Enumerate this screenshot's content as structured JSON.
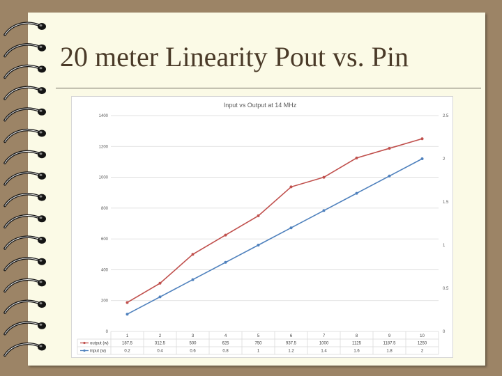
{
  "slide": {
    "title": "20 meter Linearity Pout vs. Pin"
  },
  "colors": {
    "output": "#c0504d",
    "input": "#4f81bd",
    "paper": "#fbfae6",
    "background": "#9c8466"
  },
  "chart_data": {
    "type": "line",
    "title": "Input vs Output at 14 MHz",
    "categories": [
      "1",
      "2",
      "3",
      "4",
      "5",
      "6",
      "7",
      "8",
      "9",
      "10"
    ],
    "series": [
      {
        "name": "output (w)",
        "axis": "left",
        "color": "#c0504d",
        "values": [
          187.5,
          312.5,
          500,
          625,
          750,
          937.5,
          1000,
          1125,
          1187.5,
          1250
        ]
      },
      {
        "name": "input (w)",
        "axis": "right",
        "color": "#4f81bd",
        "values": [
          0.2,
          0.4,
          0.6,
          0.8,
          1,
          1.2,
          1.4,
          1.6,
          1.8,
          2
        ]
      }
    ],
    "y_left": {
      "min": 0,
      "max": 1400,
      "ticks": [
        "0",
        "200",
        "400",
        "600",
        "800",
        "1000",
        "1200",
        "1400"
      ]
    },
    "y_right": {
      "min": 0,
      "max": 2.5,
      "ticks": [
        "0",
        "0.5",
        "1",
        "1.5",
        "2",
        "2.5"
      ]
    },
    "grid": true,
    "legend": "data-table",
    "data_table": {
      "rows": [
        {
          "label": "output (w)",
          "cells": [
            "187.5",
            "312.5",
            "500",
            "625",
            "750",
            "937.5",
            "1000",
            "1125",
            "1187.5",
            "1250"
          ]
        },
        {
          "label": "input (w)",
          "cells": [
            "0.2",
            "0.4",
            "0.6",
            "0.8",
            "1",
            "1.2",
            "1.4",
            "1.6",
            "1.8",
            "2"
          ]
        }
      ]
    }
  }
}
